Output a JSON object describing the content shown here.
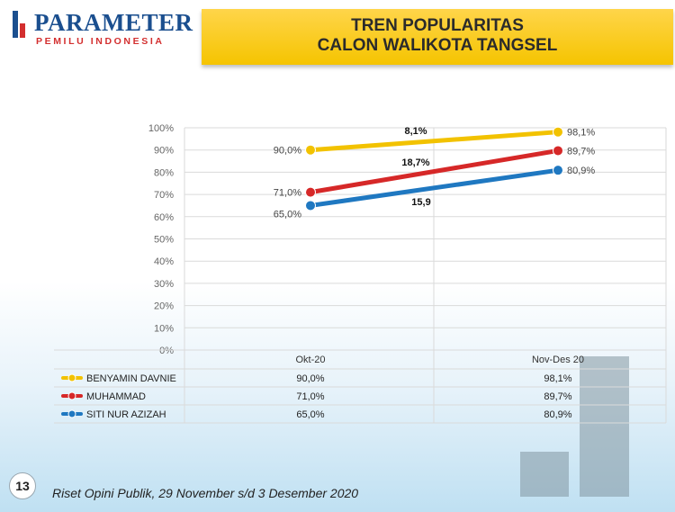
{
  "header": {
    "logo_name": "PARAMETER",
    "logo_sub": "PEMILU INDONESIA",
    "title_line1": "TREN POPULARITAS",
    "title_line2": "CALON  WALIKOTA TANGSEL"
  },
  "chart_data": {
    "type": "line",
    "categories": [
      "Okt-20",
      "Nov-Des 20"
    ],
    "ylim": [
      0,
      100
    ],
    "yticks": [
      "0%",
      "10%",
      "20%",
      "30%",
      "40%",
      "50%",
      "60%",
      "70%",
      "80%",
      "90%",
      "100%"
    ],
    "grid": true,
    "legend": "bottom-left data table",
    "series": [
      {
        "name": "BENYAMIN DAVNIE",
        "values": [
          90.0,
          98.1
        ],
        "labels": [
          "90,0%",
          "98,1%"
        ],
        "color": "#f2c200",
        "growth_label": "8,1%"
      },
      {
        "name": "MUHAMMAD",
        "values": [
          71.0,
          89.7
        ],
        "labels": [
          "71,0%",
          "89,7%"
        ],
        "color": "#d62828",
        "growth_label": "18,7%"
      },
      {
        "name": "SITI NUR AZIZAH",
        "values": [
          65.0,
          80.9
        ],
        "labels": [
          "65,0%",
          "80,9%"
        ],
        "color": "#1f78c1",
        "growth_label": "15,9"
      }
    ]
  },
  "footer": {
    "page_number": "13",
    "source": "Riset Opini Publik, 29 November s/d 3 Desember 2020"
  }
}
